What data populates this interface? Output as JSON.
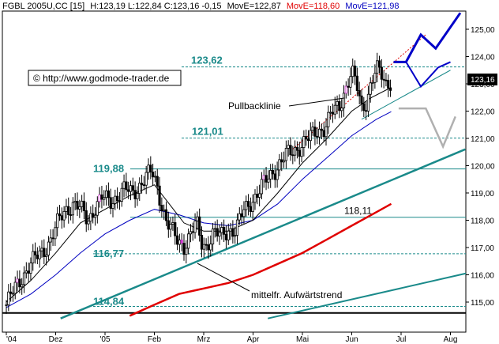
{
  "header": {
    "symbol": "FGBL 2005U,CC [15]",
    "ohlc": "H:123,19 L:122,84 C:123,16 -0,15",
    "ma1": "MovE=122,87",
    "ma2": "MovE=118,60",
    "ma3": "MovE=121,98",
    "ma1_color": "#000000",
    "ma2_color": "#e00000",
    "ma3_color": "#0000c0"
  },
  "copyright": "© http://www.godmode-trader.de",
  "last_price": "123,16",
  "chart_data": {
    "type": "line",
    "title": "",
    "xlabel": "",
    "ylabel": "",
    "ylim": [
      114.4,
      125.8
    ],
    "y_ticks": [
      "115,00",
      "116,00",
      "117,00",
      "118,00",
      "119,00",
      "120,00",
      "121,00",
      "122,00",
      "123,00",
      "124,00",
      "125,00"
    ],
    "x_ticks": [
      {
        "label": "Nov '04",
        "m": 0
      },
      {
        "label": "Dez",
        "m": 1
      },
      {
        "label": "'05",
        "m": 2
      },
      {
        "label": "Feb",
        "m": 3
      },
      {
        "label": "Mrz",
        "m": 4
      },
      {
        "label": "Apr",
        "m": 5
      },
      {
        "label": "Mai",
        "m": 6
      },
      {
        "label": "Jun",
        "m": 7
      },
      {
        "label": "Jul",
        "m": 8
      },
      {
        "label": "Aug",
        "m": 9
      }
    ],
    "x_tick_labels": [
      "'04",
      "Dez",
      "'05",
      "Feb",
      "Mrz",
      "Apr",
      "Mai",
      "Jun",
      "Jul",
      "Aug"
    ],
    "price_close": [
      {
        "m": 0.0,
        "v": 114.9
      },
      {
        "m": 0.15,
        "v": 115.4
      },
      {
        "m": 0.3,
        "v": 115.9
      },
      {
        "m": 0.45,
        "v": 116.3
      },
      {
        "m": 0.6,
        "v": 116.6
      },
      {
        "m": 0.75,
        "v": 116.9
      },
      {
        "m": 0.9,
        "v": 117.3
      },
      {
        "m": 1.05,
        "v": 117.9
      },
      {
        "m": 1.2,
        "v": 118.4
      },
      {
        "m": 1.35,
        "v": 118.6
      },
      {
        "m": 1.5,
        "v": 118.4
      },
      {
        "m": 1.65,
        "v": 118.0
      },
      {
        "m": 1.8,
        "v": 118.5
      },
      {
        "m": 1.95,
        "v": 118.8
      },
      {
        "m": 2.1,
        "v": 118.7
      },
      {
        "m": 2.25,
        "v": 118.9
      },
      {
        "m": 2.4,
        "v": 119.1
      },
      {
        "m": 2.55,
        "v": 119.0
      },
      {
        "m": 2.7,
        "v": 119.3
      },
      {
        "m": 2.85,
        "v": 119.6
      },
      {
        "m": 2.95,
        "v": 119.75
      },
      {
        "m": 3.05,
        "v": 119.3
      },
      {
        "m": 3.15,
        "v": 118.6
      },
      {
        "m": 3.25,
        "v": 117.9
      },
      {
        "m": 3.35,
        "v": 117.6
      },
      {
        "m": 3.45,
        "v": 117.3
      },
      {
        "m": 3.6,
        "v": 117.1
      },
      {
        "m": 3.75,
        "v": 117.5
      },
      {
        "m": 3.85,
        "v": 117.9
      },
      {
        "m": 3.95,
        "v": 117.2
      },
      {
        "m": 4.05,
        "v": 117.1
      },
      {
        "m": 4.2,
        "v": 117.5
      },
      {
        "m": 4.35,
        "v": 117.4
      },
      {
        "m": 4.5,
        "v": 117.7
      },
      {
        "m": 4.65,
        "v": 117.6
      },
      {
        "m": 4.8,
        "v": 118.3
      },
      {
        "m": 4.95,
        "v": 118.7
      },
      {
        "m": 5.1,
        "v": 119.0
      },
      {
        "m": 5.25,
        "v": 119.4
      },
      {
        "m": 5.4,
        "v": 119.8
      },
      {
        "m": 5.55,
        "v": 120.1
      },
      {
        "m": 5.7,
        "v": 120.4
      },
      {
        "m": 5.85,
        "v": 120.6
      },
      {
        "m": 6.0,
        "v": 120.8
      },
      {
        "m": 6.15,
        "v": 121.0
      },
      {
        "m": 6.3,
        "v": 121.3
      },
      {
        "m": 6.45,
        "v": 121.4
      },
      {
        "m": 6.6,
        "v": 121.9
      },
      {
        "m": 6.75,
        "v": 122.2
      },
      {
        "m": 6.9,
        "v": 123.0
      },
      {
        "m": 7.0,
        "v": 123.4
      },
      {
        "m": 7.1,
        "v": 122.9
      },
      {
        "m": 7.2,
        "v": 122.1
      },
      {
        "m": 7.3,
        "v": 122.4
      },
      {
        "m": 7.4,
        "v": 123.1
      },
      {
        "m": 7.5,
        "v": 123.5
      },
      {
        "m": 7.6,
        "v": 123.3
      },
      {
        "m": 7.7,
        "v": 123.0
      },
      {
        "m": 7.8,
        "v": 123.16
      }
    ],
    "ma_short_black": [
      {
        "m": 0.0,
        "v": 115.0
      },
      {
        "m": 0.5,
        "v": 115.8
      },
      {
        "m": 1.0,
        "v": 116.8
      },
      {
        "m": 1.5,
        "v": 117.9
      },
      {
        "m": 2.0,
        "v": 118.4
      },
      {
        "m": 2.5,
        "v": 118.9
      },
      {
        "m": 3.0,
        "v": 119.3
      },
      {
        "m": 3.3,
        "v": 118.6
      },
      {
        "m": 3.6,
        "v": 117.9
      },
      {
        "m": 4.0,
        "v": 117.6
      },
      {
        "m": 4.5,
        "v": 117.6
      },
      {
        "m": 5.0,
        "v": 118.0
      },
      {
        "m": 5.5,
        "v": 119.0
      },
      {
        "m": 6.0,
        "v": 120.1
      },
      {
        "m": 6.5,
        "v": 121.0
      },
      {
        "m": 7.0,
        "v": 122.0
      },
      {
        "m": 7.4,
        "v": 122.5
      },
      {
        "m": 7.8,
        "v": 122.87
      }
    ],
    "ma_mid_blue": [
      {
        "m": 0.0,
        "v": 114.8
      },
      {
        "m": 0.5,
        "v": 115.3
      },
      {
        "m": 1.0,
        "v": 116.0
      },
      {
        "m": 1.5,
        "v": 116.8
      },
      {
        "m": 2.0,
        "v": 117.5
      },
      {
        "m": 2.5,
        "v": 118.0
      },
      {
        "m": 3.0,
        "v": 118.4
      },
      {
        "m": 3.5,
        "v": 118.2
      },
      {
        "m": 4.0,
        "v": 117.9
      },
      {
        "m": 4.5,
        "v": 117.8
      },
      {
        "m": 5.0,
        "v": 118.0
      },
      {
        "m": 5.5,
        "v": 118.6
      },
      {
        "m": 6.0,
        "v": 119.5
      },
      {
        "m": 6.5,
        "v": 120.3
      },
      {
        "m": 7.0,
        "v": 121.1
      },
      {
        "m": 7.5,
        "v": 121.7
      },
      {
        "m": 7.8,
        "v": 121.98
      }
    ],
    "ma_long_red": [
      {
        "m": 2.5,
        "v": 114.5
      },
      {
        "m": 3.0,
        "v": 114.9
      },
      {
        "m": 3.5,
        "v": 115.3
      },
      {
        "m": 4.0,
        "v": 115.5
      },
      {
        "m": 4.5,
        "v": 115.7
      },
      {
        "m": 5.0,
        "v": 116.0
      },
      {
        "m": 5.5,
        "v": 116.4
      },
      {
        "m": 6.0,
        "v": 116.8
      },
      {
        "m": 6.5,
        "v": 117.3
      },
      {
        "m": 7.0,
        "v": 117.8
      },
      {
        "m": 7.5,
        "v": 118.3
      },
      {
        "m": 7.8,
        "v": 118.6
      }
    ],
    "levels": [
      {
        "label": "123,62",
        "value": 123.62,
        "style": "dashed"
      },
      {
        "label": "121,01",
        "value": 121.01,
        "style": "dashed"
      },
      {
        "label": "119,88",
        "value": 119.88,
        "style": "solid"
      },
      {
        "label": "118,11",
        "value": 118.11,
        "style": "solid"
      },
      {
        "label": "116,77",
        "value": 116.77,
        "style": "dashed"
      },
      {
        "label": "114,84",
        "value": 114.84,
        "style": "dashed"
      }
    ],
    "annotations": [
      {
        "text": "Pullbacklinie"
      },
      {
        "text": "mittelfr. Aufwärtstrend"
      }
    ]
  }
}
